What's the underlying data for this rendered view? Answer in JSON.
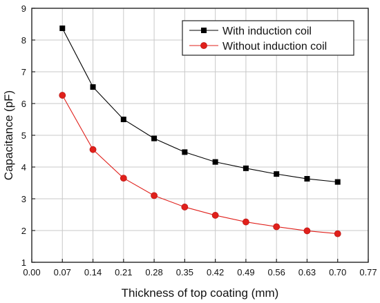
{
  "chart_data": {
    "type": "line",
    "title": "",
    "xlabel": "Thickness of top coating (mm)",
    "ylabel": "Capacitance (pF)",
    "xlim": [
      0.0,
      0.77
    ],
    "ylim": [
      1,
      9
    ],
    "x_ticks": [
      "0.00",
      "0.07",
      "0.14",
      "0.21",
      "0.28",
      "0.35",
      "0.42",
      "0.49",
      "0.56",
      "0.63",
      "0.70",
      "0.77"
    ],
    "y_ticks": [
      "1",
      "2",
      "3",
      "4",
      "5",
      "6",
      "7",
      "8",
      "9"
    ],
    "grid": true,
    "legend_position": "top-right",
    "x": [
      0.07,
      0.14,
      0.21,
      0.28,
      0.35,
      0.42,
      0.49,
      0.56,
      0.63,
      0.7
    ],
    "series": [
      {
        "name": "With induction coil",
        "color": "#000000",
        "marker": "square",
        "values": [
          8.37,
          6.52,
          5.5,
          4.9,
          4.47,
          4.16,
          3.96,
          3.78,
          3.63,
          3.53
        ]
      },
      {
        "name": "Without induction coil",
        "color": "#e0201b",
        "marker": "circle",
        "values": [
          6.26,
          4.55,
          3.65,
          3.1,
          2.74,
          2.48,
          2.27,
          2.12,
          1.99,
          1.9
        ]
      }
    ]
  }
}
